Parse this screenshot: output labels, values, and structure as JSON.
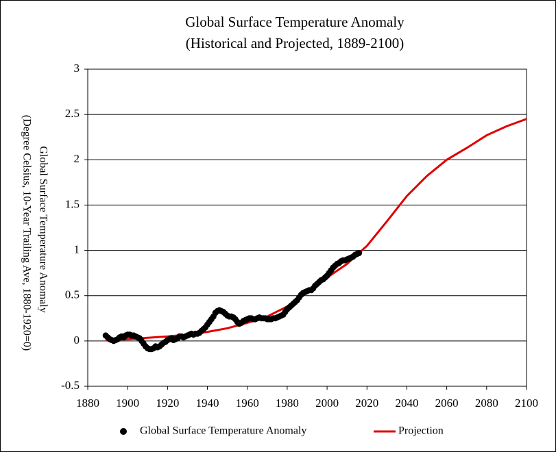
{
  "chart_data": {
    "type": "line",
    "title": [
      "Global Surface Temperature Anomaly",
      "(Historical and Projected, 1889-2100)"
    ],
    "y_label": [
      "Global Surface Temperature Anomaly",
      "(Degree Celsius, 10-Year Trailing Ave, 1880-1920=0)"
    ],
    "xlim": [
      1880,
      2100
    ],
    "xticks": [
      1880,
      1900,
      1920,
      1940,
      1960,
      1980,
      2000,
      2020,
      2040,
      2060,
      2080,
      2100
    ],
    "ylim": [
      -0.5,
      3
    ],
    "yticks": [
      -0.5,
      0,
      0.5,
      1,
      1.5,
      2,
      2.5,
      3
    ],
    "grid": true,
    "legend": "bottom",
    "series": [
      {
        "name": "Global Surface Temperature Anomaly",
        "type": "scatter",
        "color": "#000000",
        "x": [
          1889,
          1890,
          1891,
          1892,
          1893,
          1894,
          1895,
          1896,
          1897,
          1898,
          1899,
          1900,
          1901,
          1902,
          1903,
          1904,
          1905,
          1906,
          1907,
          1908,
          1909,
          1910,
          1911,
          1912,
          1913,
          1914,
          1915,
          1916,
          1917,
          1918,
          1919,
          1920,
          1921,
          1922,
          1923,
          1924,
          1925,
          1926,
          1927,
          1928,
          1929,
          1930,
          1931,
          1932,
          1933,
          1934,
          1935,
          1936,
          1937,
          1938,
          1939,
          1940,
          1941,
          1942,
          1943,
          1944,
          1945,
          1946,
          1947,
          1948,
          1949,
          1950,
          1951,
          1952,
          1953,
          1954,
          1955,
          1956,
          1957,
          1958,
          1959,
          1960,
          1961,
          1962,
          1963,
          1964,
          1965,
          1966,
          1967,
          1968,
          1969,
          1970,
          1971,
          1972,
          1973,
          1974,
          1975,
          1976,
          1977,
          1978,
          1979,
          1980,
          1981,
          1982,
          1983,
          1984,
          1985,
          1986,
          1987,
          1988,
          1989,
          1990,
          1991,
          1992,
          1993,
          1994,
          1995,
          1996,
          1997,
          1998,
          1999,
          2000,
          2001,
          2002,
          2003,
          2004,
          2005,
          2006,
          2007,
          2008,
          2009,
          2010,
          2011,
          2012,
          2013,
          2014,
          2015,
          2016
        ],
        "values": [
          0.06,
          0.04,
          0.02,
          0.01,
          0.0,
          0.01,
          0.02,
          0.04,
          0.05,
          0.04,
          0.06,
          0.07,
          0.07,
          0.06,
          0.06,
          0.05,
          0.04,
          0.03,
          0.0,
          -0.03,
          -0.06,
          -0.08,
          -0.09,
          -0.09,
          -0.08,
          -0.06,
          -0.07,
          -0.06,
          -0.04,
          -0.02,
          -0.01,
          0.01,
          0.02,
          0.03,
          0.01,
          0.02,
          0.03,
          0.05,
          0.05,
          0.04,
          0.05,
          0.06,
          0.07,
          0.08,
          0.07,
          0.08,
          0.08,
          0.09,
          0.11,
          0.13,
          0.15,
          0.18,
          0.21,
          0.24,
          0.27,
          0.31,
          0.33,
          0.34,
          0.33,
          0.32,
          0.3,
          0.28,
          0.27,
          0.27,
          0.26,
          0.24,
          0.21,
          0.19,
          0.2,
          0.22,
          0.23,
          0.24,
          0.25,
          0.25,
          0.24,
          0.24,
          0.25,
          0.26,
          0.25,
          0.25,
          0.25,
          0.24,
          0.24,
          0.24,
          0.25,
          0.25,
          0.26,
          0.27,
          0.28,
          0.29,
          0.32,
          0.35,
          0.37,
          0.39,
          0.41,
          0.43,
          0.45,
          0.48,
          0.51,
          0.53,
          0.54,
          0.55,
          0.56,
          0.56,
          0.58,
          0.61,
          0.63,
          0.65,
          0.67,
          0.68,
          0.7,
          0.72,
          0.75,
          0.78,
          0.81,
          0.83,
          0.85,
          0.86,
          0.88,
          0.89,
          0.89,
          0.9,
          0.91,
          0.92,
          0.93,
          0.95,
          0.96,
          0.97
        ]
      },
      {
        "name": "Projection",
        "type": "line",
        "color": "#e00000",
        "x": [
          1889,
          1900,
          1910,
          1920,
          1930,
          1940,
          1950,
          1960,
          1970,
          1980,
          1990,
          2000,
          2010,
          2020,
          2030,
          2040,
          2050,
          2060,
          2070,
          2080,
          2090,
          2100
        ],
        "values": [
          0.01,
          0.02,
          0.035,
          0.05,
          0.07,
          0.1,
          0.14,
          0.2,
          0.27,
          0.38,
          0.55,
          0.7,
          0.85,
          1.05,
          1.32,
          1.6,
          1.82,
          2.0,
          2.13,
          2.27,
          2.37,
          2.45
        ]
      }
    ]
  }
}
